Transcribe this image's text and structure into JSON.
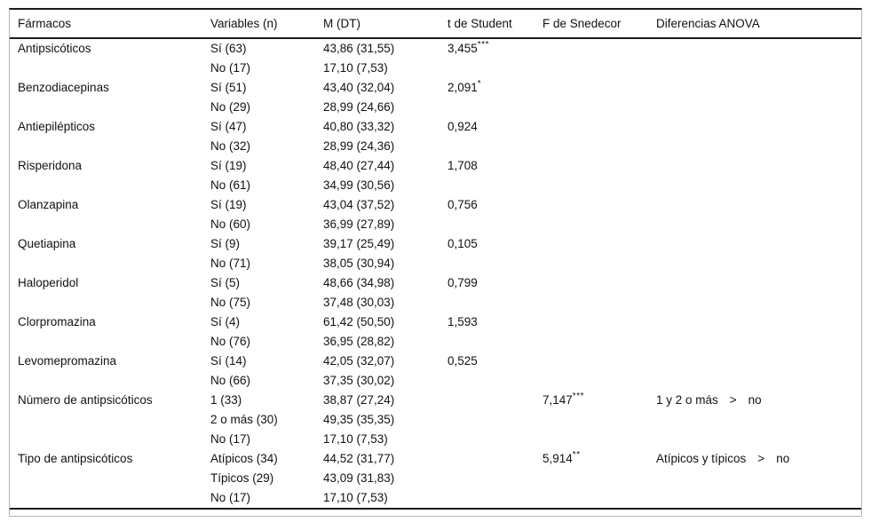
{
  "colors": {
    "text": "#111111",
    "rule": "#1c1c1c",
    "frame_border": "#b5b5b5",
    "background": "#ffffff"
  },
  "table": {
    "columns": [
      "Fármacos",
      "Variables (n)",
      "M (DT)",
      "t de Student",
      "F de Snedecor",
      "Diferencias ANOVA"
    ],
    "rows": [
      {
        "farmaco": "Antipsicóticos",
        "variable": "Sí (63)",
        "m_dt": "43,86 (31,55)",
        "t": "3,455",
        "t_stars": "***"
      },
      {
        "farmaco": "",
        "variable": "No (17)",
        "m_dt": "17,10 (7,53)"
      },
      {
        "farmaco": "Benzodiacepinas",
        "variable": "Sí (51)",
        "m_dt": "43,40 (32,04)",
        "t": "2,091",
        "t_stars": "*"
      },
      {
        "farmaco": "",
        "variable": "No (29)",
        "m_dt": "28,99 (24,66)"
      },
      {
        "farmaco": "Antiepilépticos",
        "variable": "Sí (47)",
        "m_dt": "40,80 (33,32)",
        "t": "0,924"
      },
      {
        "farmaco": "",
        "variable": "No (32)",
        "m_dt": "28,99 (24,36)"
      },
      {
        "farmaco": "Risperidona",
        "variable": "Sí (19)",
        "m_dt": "48,40 (27,44)",
        "t": "1,708"
      },
      {
        "farmaco": "",
        "variable": "No (61)",
        "m_dt": "34,99 (30,56)"
      },
      {
        "farmaco": "Olanzapina",
        "variable": "Sí (19)",
        "m_dt": "43,04 (37,52)",
        "t": "0,756"
      },
      {
        "farmaco": "",
        "variable": "No (60)",
        "m_dt": "36,99 (27,89)"
      },
      {
        "farmaco": "Quetiapina",
        "variable": "Sí (9)",
        "m_dt": "39,17 (25,49)",
        "t": "0,105"
      },
      {
        "farmaco": "",
        "variable": "No (71)",
        "m_dt": "38,05 (30,94)"
      },
      {
        "farmaco": "Haloperidol",
        "variable": "Sí (5)",
        "m_dt": "48,66 (34,98)",
        "t": "0,799"
      },
      {
        "farmaco": "",
        "variable": "No (75)",
        "m_dt": "37,48 (30,03)"
      },
      {
        "farmaco": "Clorpromazina",
        "variable": "Sí (4)",
        "m_dt": "61,42 (50,50)",
        "t": "1,593"
      },
      {
        "farmaco": "",
        "variable": "No (76)",
        "m_dt": "36,95 (28,82)"
      },
      {
        "farmaco": "Levomepromazina",
        "variable": "Sí (14)",
        "m_dt": "42,05 (32,07)",
        "t": "0,525"
      },
      {
        "farmaco": "",
        "variable": "No (66)",
        "m_dt": "37,35 (30,02)"
      },
      {
        "farmaco": "Número de antipsicóticos",
        "variable": "1 (33)",
        "m_dt": "38,87 (27,24)",
        "f": "7,147",
        "f_stars": "***",
        "dif": {
          "a": "1 y 2 o más",
          "op": ">",
          "b": "no"
        }
      },
      {
        "farmaco": "",
        "variable": "2 o más (30)",
        "m_dt": "49,35 (35,35)"
      },
      {
        "farmaco": "",
        "variable": "No (17)",
        "m_dt": "17,10 (7,53)"
      },
      {
        "farmaco": "Tipo de antipsicóticos",
        "variable": "Atípicos (34)",
        "m_dt": "44,52 (31,77)",
        "f": "5,914",
        "f_stars": "**",
        "dif": {
          "a": "Atípicos y típicos",
          "op": ">",
          "b": "no"
        }
      },
      {
        "farmaco": "",
        "variable": "Típicos (29)",
        "m_dt": "43,09 (31,83)"
      },
      {
        "farmaco": "",
        "variable": "No (17)",
        "m_dt": "17,10 (7,53)"
      }
    ]
  }
}
